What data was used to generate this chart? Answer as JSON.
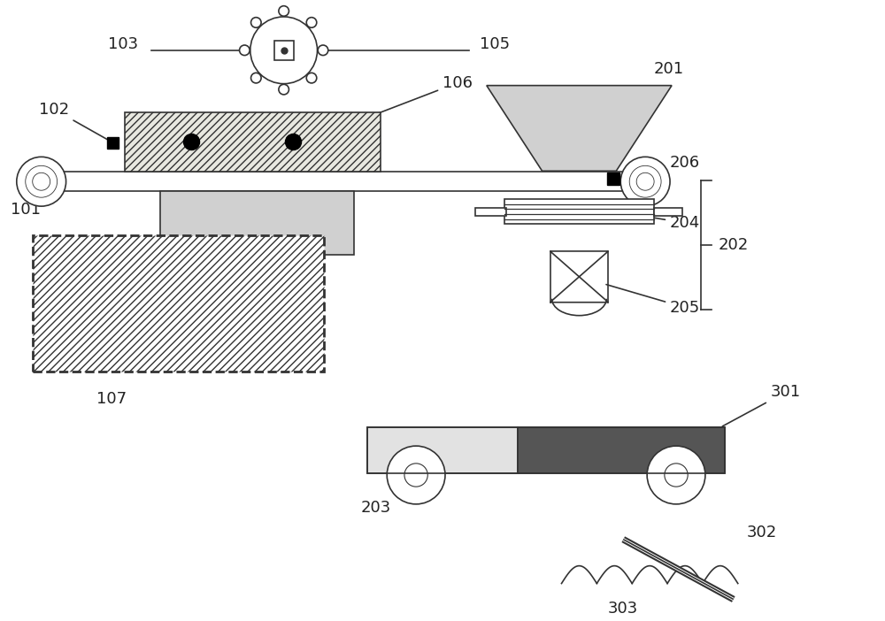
{
  "bg_color": "#ffffff",
  "line_color": "#333333",
  "gray_light": "#d0d0d0",
  "gray_medium": "#909090",
  "gray_dark": "#555555",
  "label_fontsize": 13,
  "label_color": "#222222"
}
